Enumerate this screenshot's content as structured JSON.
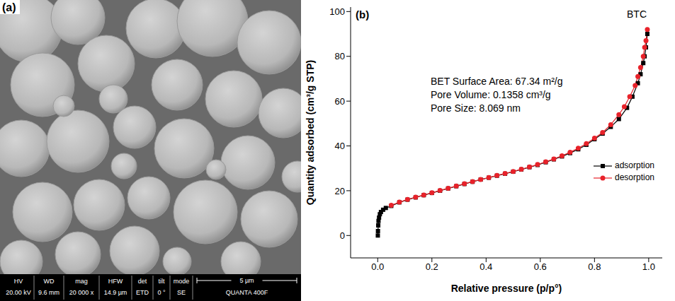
{
  "image_panel": {
    "label": "(a)",
    "info_bar": {
      "headers": [
        "HV",
        "WD",
        "mag",
        "HFW",
        "det",
        "tilt",
        "mode"
      ],
      "values": [
        "20.00 kV",
        "9.6 mm",
        "20 000 x",
        "14.9 µm",
        "ETD",
        "0 °",
        "SE"
      ],
      "scale_bar": "5 µm",
      "instrument": "QUANTA 400F"
    }
  },
  "chart_data": {
    "type": "line",
    "panel_label": "(b)",
    "title": "BTC",
    "xlabel": "Relative pressure (p/p°)",
    "ylabel": "Quantity adsorbed (cm³/g STP)",
    "annotations": [
      "BET Surface Area: 67.34 m²/g",
      "Pore Volume: 0.1358 cm³/g",
      "Pore Size: 8.069 nm"
    ],
    "xlim": [
      -0.1,
      1.05
    ],
    "xticks": [
      {
        "value": 0,
        "label": "0.0"
      },
      0.2,
      0.4,
      0.6,
      0.8,
      {
        "value": 1,
        "label": "1.0"
      }
    ],
    "ylim": [
      -10,
      102
    ],
    "yticks": [
      0,
      20,
      40,
      60,
      80,
      100
    ],
    "grid": false,
    "legend": "right",
    "series": [
      {
        "name": "adsorption",
        "color": "#000000",
        "marker": "square",
        "x": [
          0.0005,
          0.001,
          0.002,
          0.003,
          0.005,
          0.008,
          0.012,
          0.02,
          0.03,
          0.05,
          0.08,
          0.11,
          0.14,
          0.17,
          0.2,
          0.23,
          0.26,
          0.29,
          0.32,
          0.35,
          0.38,
          0.41,
          0.44,
          0.47,
          0.5,
          0.53,
          0.56,
          0.59,
          0.62,
          0.65,
          0.68,
          0.71,
          0.74,
          0.77,
          0.8,
          0.83,
          0.86,
          0.89,
          0.92,
          0.94,
          0.96,
          0.97,
          0.98,
          0.985,
          0.99,
          0.995
        ],
        "values": [
          0,
          2,
          4.5,
          6.5,
          8,
          9.5,
          10.5,
          11.5,
          12.3,
          13.2,
          14.8,
          16,
          17,
          18,
          19,
          20,
          21,
          22,
          23,
          24,
          25,
          25.8,
          26.7,
          27.6,
          28.5,
          29.5,
          30.5,
          31.5,
          32.7,
          34,
          35.3,
          36.8,
          38.5,
          40.5,
          43,
          45.5,
          48.5,
          52,
          57,
          62,
          68,
          72,
          77,
          80,
          84,
          90
        ]
      },
      {
        "name": "desorption",
        "color": "#e8222a",
        "marker": "circle",
        "x": [
          0.995,
          0.99,
          0.985,
          0.98,
          0.97,
          0.96,
          0.95,
          0.93,
          0.91,
          0.89,
          0.86,
          0.83,
          0.8,
          0.77,
          0.74,
          0.71,
          0.68,
          0.65,
          0.62,
          0.59,
          0.56,
          0.53,
          0.5,
          0.47,
          0.44,
          0.41,
          0.38,
          0.35,
          0.32,
          0.29,
          0.26,
          0.23,
          0.2,
          0.17,
          0.14,
          0.11,
          0.08,
          0.05
        ],
        "values": [
          92,
          87,
          84,
          80,
          75,
          71,
          67,
          62,
          57.5,
          54,
          49.5,
          46,
          43.5,
          41,
          39,
          37.2,
          35.6,
          34.2,
          32.9,
          31.7,
          30.6,
          29.6,
          28.6,
          27.7,
          26.8,
          25.9,
          25,
          24.1,
          23.1,
          22.1,
          21.1,
          20.1,
          19.1,
          18.1,
          17.1,
          16.1,
          14.9,
          13.5
        ]
      }
    ]
  }
}
